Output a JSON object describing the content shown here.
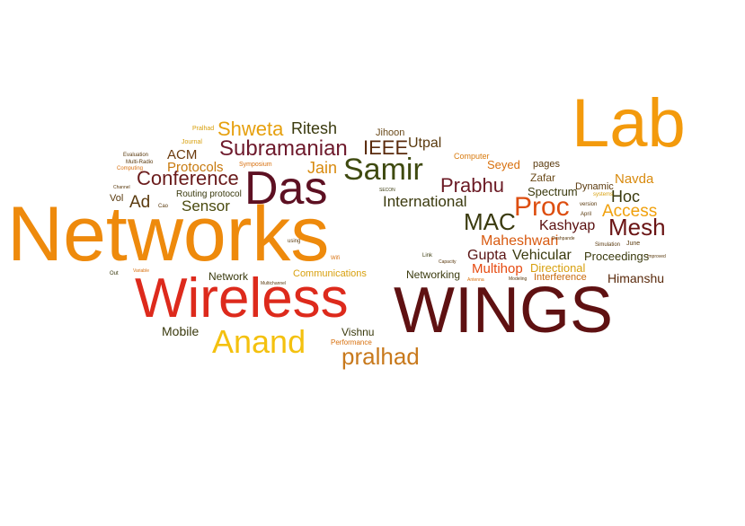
{
  "word_cloud": {
    "words": [
      {
        "text": "Networks",
        "color": "#ee8a0c"
      },
      {
        "text": "WINGS",
        "color": "#5f1112"
      },
      {
        "text": "Wireless",
        "color": "#dd2a1c"
      },
      {
        "text": "Lab",
        "color": "#f39a0c"
      },
      {
        "text": "Das",
        "color": "#5d1022"
      },
      {
        "text": "Anand",
        "color": "#f4c10f"
      },
      {
        "text": "Samir",
        "color": "#3f4a10"
      },
      {
        "text": "pralhad",
        "color": "#c8791c"
      },
      {
        "text": "Subramanian",
        "color": "#6e1a2c"
      },
      {
        "text": "Conference",
        "color": "#6a1b1b"
      },
      {
        "text": "Prabhu",
        "color": "#6b1a24"
      },
      {
        "text": "Proc",
        "color": "#dd4e10"
      },
      {
        "text": "Mesh",
        "color": "#6a1414"
      },
      {
        "text": "MAC",
        "color": "#3a3a0e"
      },
      {
        "text": "International",
        "color": "#3b3a0e"
      },
      {
        "text": "Access",
        "color": "#f0a00c"
      },
      {
        "text": "Shweta",
        "color": "#e6a00e"
      },
      {
        "text": "Ritesh",
        "color": "#3a3a0e"
      },
      {
        "text": "IEEE",
        "color": "#5a2a0c"
      },
      {
        "text": "Utpal",
        "color": "#5a3a0e"
      },
      {
        "text": "Jihoon",
        "color": "#6a4a1a"
      },
      {
        "text": "Jain",
        "color": "#d88a0e"
      },
      {
        "text": "ACM",
        "color": "#6a3a0e"
      },
      {
        "text": "Protocols",
        "color": "#c87a0e"
      },
      {
        "text": "Sensor",
        "color": "#4a4a0e"
      },
      {
        "text": "Ad",
        "color": "#5a3a0e"
      },
      {
        "text": "Hoc",
        "color": "#3a3a0e"
      },
      {
        "text": "Kashyap",
        "color": "#5a1010"
      },
      {
        "text": "Maheshwari",
        "color": "#d85a10"
      },
      {
        "text": "Gupta",
        "color": "#5a1414"
      },
      {
        "text": "Vehicular",
        "color": "#3a3a0e"
      },
      {
        "text": "Multihop",
        "color": "#e64a10"
      },
      {
        "text": "Directional",
        "color": "#d8a00e"
      },
      {
        "text": "Interference",
        "color": "#c86a0e"
      },
      {
        "text": "Proceedings",
        "color": "#3a3a0e"
      },
      {
        "text": "Himanshu",
        "color": "#5a2a0c"
      },
      {
        "text": "Navda",
        "color": "#d88a0e"
      },
      {
        "text": "Spectrum",
        "color": "#3a3a0e"
      },
      {
        "text": "Dynamic",
        "color": "#5a3a0e"
      },
      {
        "text": "Zafar",
        "color": "#6a4a1a"
      },
      {
        "text": "Seyed",
        "color": "#d8700e"
      },
      {
        "text": "pages",
        "color": "#5a3a0e"
      },
      {
        "text": "Computer",
        "color": "#d87a0e"
      },
      {
        "text": "Networking",
        "color": "#3a3a0e"
      },
      {
        "text": "Communications",
        "color": "#d8a00e"
      },
      {
        "text": "Network",
        "color": "#3a3a0e"
      },
      {
        "text": "Mobile",
        "color": "#3a3a0e"
      },
      {
        "text": "Vishnu",
        "color": "#3a3a0e"
      },
      {
        "text": "Performance",
        "color": "#d8700e"
      },
      {
        "text": "Routing protocol",
        "color": "#3a3a0e"
      },
      {
        "text": "Vol",
        "color": "#5a3a0e"
      },
      {
        "text": "Symposium",
        "color": "#d8700e"
      },
      {
        "text": "Pralhad",
        "color": "#d8a00e"
      },
      {
        "text": "Journal",
        "color": "#d8a00e"
      },
      {
        "text": "Evaluation",
        "color": "#5a3a0e"
      },
      {
        "text": "Multi-Radio",
        "color": "#5a3a0e"
      },
      {
        "text": "Computing",
        "color": "#d8700e"
      },
      {
        "text": "Channel",
        "color": "#5a3a0e"
      },
      {
        "text": "Cao",
        "color": "#5a3a0e"
      },
      {
        "text": "SECON",
        "color": "#3a3a0e"
      },
      {
        "text": "Simulation",
        "color": "#5a3a0e"
      },
      {
        "text": "June",
        "color": "#5a3a0e"
      },
      {
        "text": "April",
        "color": "#5a3a0e"
      },
      {
        "text": "version",
        "color": "#5a3a0e"
      },
      {
        "text": "systems",
        "color": "#d8a00e"
      },
      {
        "text": "Modeling",
        "color": "#5a3a0e"
      },
      {
        "text": "Antenna",
        "color": "#d8700e"
      },
      {
        "text": "Wifi",
        "color": "#d8700e"
      },
      {
        "text": "Link",
        "color": "#3a3a0e"
      },
      {
        "text": "Multichannel",
        "color": "#5a3a0e"
      },
      {
        "text": "using",
        "color": "#5a3a0e"
      },
      {
        "text": "Out",
        "color": "#3a3a0e"
      },
      {
        "text": "Variable",
        "color": "#d8700e"
      },
      {
        "text": "Improved",
        "color": "#5a3a0e"
      },
      {
        "text": "Capacity",
        "color": "#5a3a0e"
      },
      {
        "text": "Deshpande",
        "color": "#5a3a0e"
      }
    ]
  }
}
